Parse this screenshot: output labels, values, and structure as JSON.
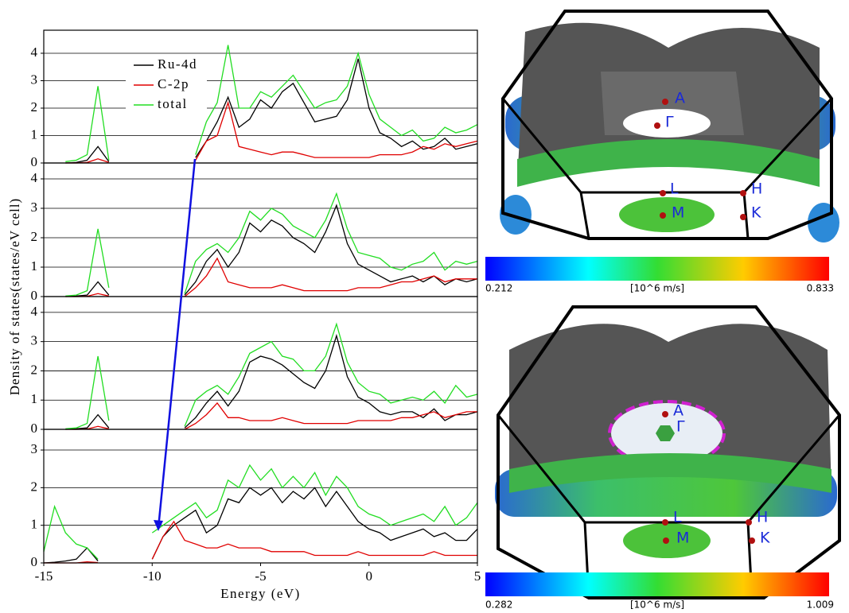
{
  "chart_data": [
    {
      "type": "line",
      "xlim": [
        -15,
        5
      ],
      "ylim": [
        0,
        4.84
      ],
      "yticks": [
        0,
        1,
        2,
        3,
        4
      ],
      "grid": true,
      "legend": "upper left",
      "ylabel": "Density of states(states/eV cell)",
      "x": [
        -15,
        -14.5,
        -14,
        -13.5,
        -13,
        -12.5,
        -12,
        -11.5,
        -11,
        -10.5,
        -10,
        -9.5,
        -9,
        -8.5,
        -8,
        -7.5,
        -7,
        -6.5,
        -6,
        -5.5,
        -5,
        -4.5,
        -4,
        -3.5,
        -3,
        -2.5,
        -2,
        -1.5,
        -1,
        -0.5,
        0,
        0.5,
        1,
        1.5,
        2,
        2.5,
        3,
        3.5,
        4,
        4.5,
        5
      ],
      "series": [
        {
          "name": "Ru-4d",
          "color": "#000000",
          "values": [
            null,
            null,
            0,
            0.02,
            0.1,
            0.6,
            0.05,
            null,
            null,
            null,
            null,
            null,
            null,
            null,
            0.2,
            0.8,
            1.5,
            2.4,
            1.3,
            1.6,
            2.3,
            2.0,
            2.6,
            2.9,
            2.2,
            1.5,
            1.6,
            1.7,
            2.3,
            3.8,
            2.0,
            1.1,
            0.9,
            0.6,
            0.8,
            0.5,
            0.6,
            0.9,
            0.5,
            0.6,
            0.7
          ]
        },
        {
          "name": "C-2p",
          "color": "#e00000",
          "values": [
            null,
            null,
            0,
            0,
            0.02,
            0.15,
            0.02,
            null,
            null,
            null,
            null,
            null,
            null,
            null,
            0.1,
            0.8,
            1.0,
            2.2,
            0.6,
            0.5,
            0.4,
            0.3,
            0.4,
            0.4,
            0.3,
            0.2,
            0.2,
            0.2,
            0.2,
            0.2,
            0.2,
            0.3,
            0.3,
            0.3,
            0.4,
            0.6,
            0.5,
            0.7,
            0.6,
            0.7,
            0.8
          ]
        },
        {
          "name": "total",
          "color": "#22dd22",
          "values": [
            null,
            null,
            0.05,
            0.1,
            0.3,
            2.8,
            0.1,
            null,
            null,
            null,
            null,
            null,
            null,
            null,
            0.3,
            1.5,
            2.2,
            4.3,
            2.0,
            2.0,
            2.6,
            2.4,
            2.8,
            3.2,
            2.6,
            2.0,
            2.2,
            2.3,
            2.8,
            4.0,
            2.5,
            1.6,
            1.3,
            1.0,
            1.2,
            0.8,
            0.9,
            1.3,
            1.1,
            1.2,
            1.4
          ]
        }
      ]
    },
    {
      "type": "line",
      "xlim": [
        -15,
        5
      ],
      "ylim": [
        0,
        4.54
      ],
      "yticks": [
        0,
        1,
        2,
        3,
        4
      ],
      "grid": true,
      "x": [
        -15,
        -14.5,
        -14,
        -13.5,
        -13,
        -12.5,
        -12,
        -11.5,
        -11,
        -10.5,
        -10,
        -9.5,
        -9,
        -8.5,
        -8,
        -7.5,
        -7,
        -6.5,
        -6,
        -5.5,
        -5,
        -4.5,
        -4,
        -3.5,
        -3,
        -2.5,
        -2,
        -1.5,
        -1,
        -0.5,
        0,
        0.5,
        1,
        1.5,
        2,
        2.5,
        3,
        3.5,
        4,
        4.5,
        5
      ],
      "series": [
        {
          "color": "#000000",
          "values": [
            null,
            null,
            0,
            0.02,
            0.05,
            0.5,
            0.05,
            null,
            null,
            null,
            null,
            null,
            null,
            0.05,
            0.5,
            1.2,
            1.6,
            1.0,
            1.5,
            2.5,
            2.2,
            2.6,
            2.4,
            2.0,
            1.8,
            1.5,
            2.2,
            3.1,
            1.8,
            1.1,
            0.9,
            0.7,
            0.5,
            0.6,
            0.7,
            0.5,
            0.7,
            0.4,
            0.6,
            0.5,
            0.6
          ]
        },
        {
          "color": "#e00000",
          "values": [
            null,
            null,
            0,
            0,
            0.01,
            0.1,
            0.02,
            null,
            null,
            null,
            null,
            null,
            null,
            0,
            0.3,
            0.7,
            1.3,
            0.5,
            0.4,
            0.3,
            0.3,
            0.3,
            0.4,
            0.3,
            0.2,
            0.2,
            0.2,
            0.2,
            0.2,
            0.3,
            0.3,
            0.3,
            0.4,
            0.5,
            0.5,
            0.6,
            0.7,
            0.5,
            0.6,
            0.6,
            0.6
          ]
        },
        {
          "color": "#22dd22",
          "values": [
            null,
            null,
            0.02,
            0.05,
            0.2,
            2.3,
            0.3,
            null,
            null,
            null,
            null,
            null,
            null,
            0.1,
            1.2,
            1.6,
            1.8,
            1.5,
            2.0,
            2.9,
            2.6,
            3.0,
            2.8,
            2.4,
            2.2,
            2.0,
            2.6,
            3.5,
            2.3,
            1.5,
            1.4,
            1.3,
            1.0,
            0.9,
            1.1,
            1.2,
            1.5,
            0.9,
            1.2,
            1.1,
            1.2
          ]
        }
      ]
    },
    {
      "type": "line",
      "xlim": [
        -15,
        5
      ],
      "ylim": [
        0,
        4.54
      ],
      "yticks": [
        0,
        1,
        2,
        3,
        4
      ],
      "grid": true,
      "x": [
        -15,
        -14.5,
        -14,
        -13.5,
        -13,
        -12.5,
        -12,
        -11.5,
        -11,
        -10.5,
        -10,
        -9.5,
        -9,
        -8.5,
        -8,
        -7.5,
        -7,
        -6.5,
        -6,
        -5.5,
        -5,
        -4.5,
        -4,
        -3.5,
        -3,
        -2.5,
        -2,
        -1.5,
        -1,
        -0.5,
        0,
        0.5,
        1,
        1.5,
        2,
        2.5,
        3,
        3.5,
        4,
        4.5,
        5
      ],
      "series": [
        {
          "color": "#000000",
          "values": [
            null,
            null,
            0,
            0.02,
            0.05,
            0.5,
            0.05,
            null,
            null,
            null,
            null,
            null,
            null,
            0.05,
            0.4,
            0.9,
            1.3,
            0.8,
            1.3,
            2.3,
            2.5,
            2.4,
            2.2,
            1.9,
            1.6,
            1.4,
            2.0,
            3.2,
            1.8,
            1.1,
            0.9,
            0.6,
            0.5,
            0.6,
            0.6,
            0.4,
            0.7,
            0.3,
            0.5,
            0.5,
            0.6
          ]
        },
        {
          "color": "#e00000",
          "values": [
            null,
            null,
            0,
            0,
            0.01,
            0.1,
            0.02,
            null,
            null,
            null,
            null,
            null,
            null,
            0,
            0.2,
            0.5,
            0.9,
            0.4,
            0.4,
            0.3,
            0.3,
            0.3,
            0.4,
            0.3,
            0.2,
            0.2,
            0.2,
            0.2,
            0.2,
            0.3,
            0.3,
            0.3,
            0.3,
            0.4,
            0.4,
            0.5,
            0.6,
            0.4,
            0.5,
            0.6,
            0.6
          ]
        },
        {
          "color": "#22dd22",
          "values": [
            null,
            null,
            0.02,
            0.05,
            0.2,
            2.5,
            0.3,
            null,
            null,
            null,
            null,
            null,
            null,
            0.1,
            1.0,
            1.3,
            1.5,
            1.2,
            1.8,
            2.6,
            2.8,
            3.0,
            2.5,
            2.4,
            2.0,
            2.0,
            2.5,
            3.6,
            2.3,
            1.6,
            1.3,
            1.2,
            0.9,
            1.0,
            1.1,
            1.0,
            1.3,
            0.9,
            1.5,
            1.1,
            1.2
          ]
        }
      ]
    },
    {
      "type": "line",
      "xlim": [
        -15,
        5
      ],
      "ylim": [
        0,
        3.55
      ],
      "yticks": [
        0,
        1,
        2,
        3
      ],
      "xticks": [
        -15,
        -10,
        -5,
        0,
        5
      ],
      "grid": true,
      "xlabel": "Energy (eV)",
      "x": [
        -15,
        -14.5,
        -14,
        -13.5,
        -13,
        -12.5,
        -12,
        -11.5,
        -11,
        -10.5,
        -10,
        -9.5,
        -9,
        -8.5,
        -8,
        -7.5,
        -7,
        -6.5,
        -6,
        -5.5,
        -5,
        -4.5,
        -4,
        -3.5,
        -3,
        -2.5,
        -2,
        -1.5,
        -1,
        -0.5,
        0,
        0.5,
        1,
        1.5,
        2,
        2.5,
        3,
        3.5,
        4,
        4.5,
        5
      ],
      "series": [
        {
          "color": "#000000",
          "values": [
            0,
            0.02,
            0.05,
            0.1,
            0.4,
            0.05,
            null,
            null,
            null,
            null,
            0.1,
            0.7,
            1.0,
            1.2,
            1.4,
            0.8,
            1.0,
            1.7,
            1.6,
            2.0,
            1.8,
            2.0,
            1.6,
            1.9,
            1.7,
            2.0,
            1.5,
            1.9,
            1.5,
            1.1,
            0.9,
            0.8,
            0.6,
            0.7,
            0.8,
            0.9,
            0.7,
            0.8,
            0.6,
            0.6,
            0.9
          ]
        },
        {
          "color": "#e00000",
          "values": [
            0,
            0,
            0,
            0,
            0.03,
            0.01,
            null,
            null,
            null,
            null,
            0.1,
            0.7,
            1.1,
            0.6,
            0.5,
            0.4,
            0.4,
            0.5,
            0.4,
            0.4,
            0.4,
            0.3,
            0.3,
            0.3,
            0.3,
            0.2,
            0.2,
            0.2,
            0.2,
            0.3,
            0.2,
            0.2,
            0.2,
            0.2,
            0.2,
            0.2,
            0.3,
            0.2,
            0.2,
            0.2,
            0.2
          ]
        },
        {
          "color": "#22dd22",
          "values": [
            0.3,
            1.5,
            0.8,
            0.5,
            0.4,
            0.1,
            null,
            null,
            null,
            null,
            0.8,
            1.0,
            1.2,
            1.4,
            1.6,
            1.2,
            1.4,
            2.2,
            2.0,
            2.6,
            2.2,
            2.5,
            2.0,
            2.3,
            2.0,
            2.4,
            1.8,
            2.3,
            2.0,
            1.5,
            1.3,
            1.2,
            1.0,
            1.1,
            1.2,
            1.3,
            1.1,
            1.5,
            1.0,
            1.2,
            1.6
          ]
        }
      ]
    }
  ],
  "fermi_surfaces": [
    {
      "points": [
        "A",
        "Γ",
        "L",
        "H",
        "M",
        "K"
      ],
      "colorbar": {
        "min_label": "0.212",
        "unit": "[10^6 m/s]",
        "max_label": "0.833"
      }
    },
    {
      "points": [
        "A",
        "Γ",
        "L",
        "H",
        "M",
        "K"
      ],
      "colorbar": {
        "min_label": "0.282",
        "unit": "[10^6 m/s]",
        "max_label": "1.009"
      }
    }
  ]
}
